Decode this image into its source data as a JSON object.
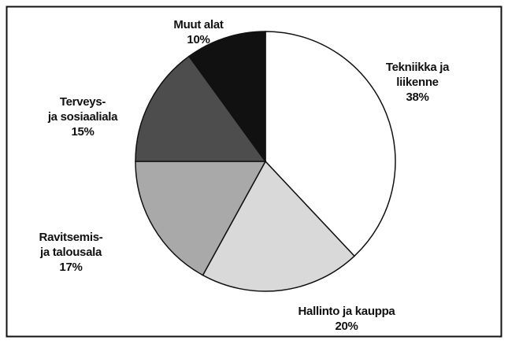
{
  "chart_data": {
    "type": "pie",
    "categories": [
      "Tekniikka ja liikenne",
      "Hallinto ja kauppa",
      "Ravitsemis-\nja talousala",
      "Terveys-\nja sosiaaliala",
      "Muut alat"
    ],
    "values": [
      38,
      20,
      17,
      15,
      10
    ],
    "value_labels": [
      "38%",
      "20%",
      "17%",
      "15%",
      "10%"
    ],
    "colors": [
      "#ffffff",
      "#d9d9d9",
      "#a9a9a9",
      "#4d4d4d",
      "#111111"
    ]
  }
}
